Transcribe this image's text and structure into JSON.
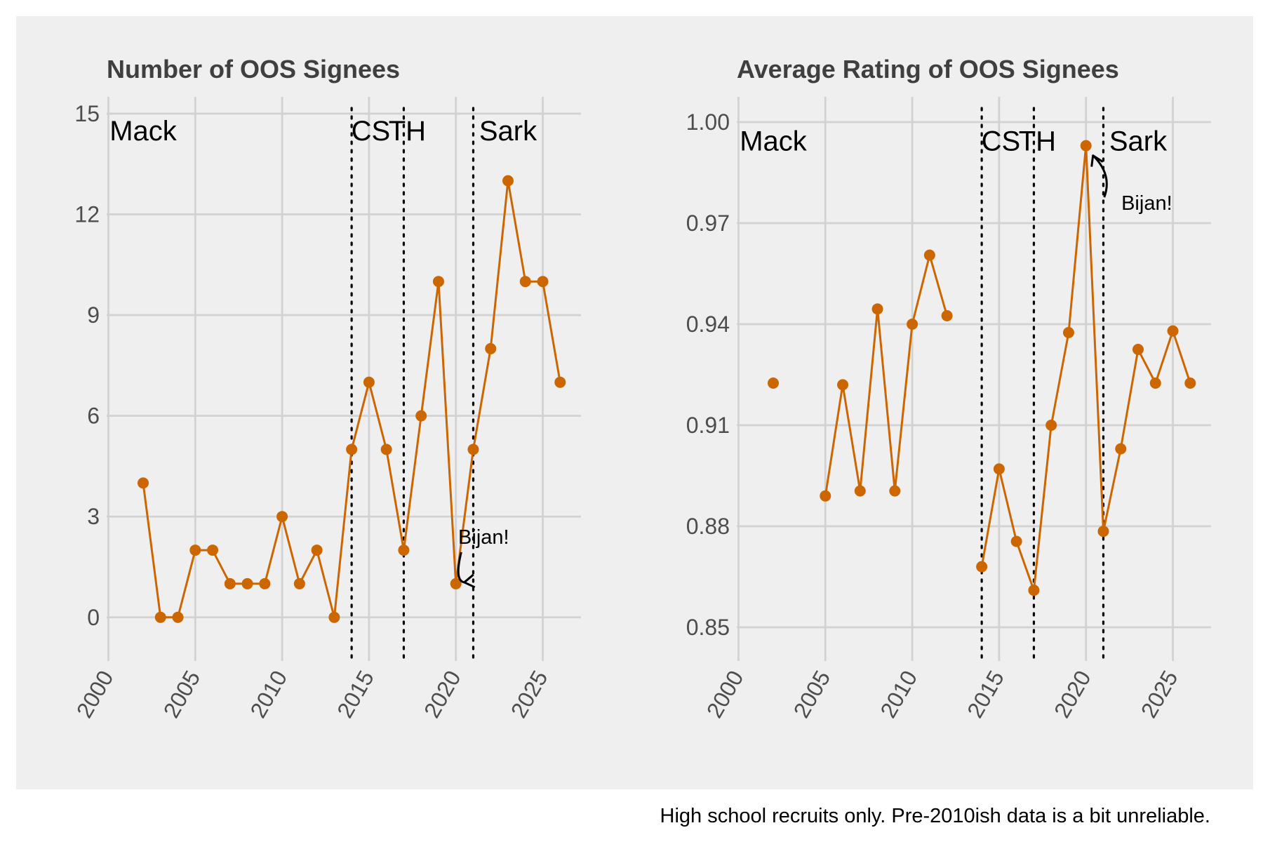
{
  "caption": "High school recruits only. Pre-2010ish data is a bit unreliable.",
  "colors": {
    "series": "#cc6600",
    "panel_background": "#efefef",
    "grid": "#d2d2d2",
    "vline": "#000000"
  },
  "chart_data": [
    {
      "type": "line",
      "title": "Number of OOS Signees",
      "xlabel": "",
      "ylabel": "",
      "xlim": [
        1999.9,
        2027.2
      ],
      "ylim": [
        -1.3,
        15.5
      ],
      "x_ticks": [
        2000,
        2005,
        2010,
        2015,
        2020,
        2025
      ],
      "y_ticks": [
        0,
        3,
        6,
        9,
        12,
        15
      ],
      "y_tick_labels": [
        "0",
        "3",
        "6",
        "9",
        "12",
        "15"
      ],
      "grid": true,
      "series": [
        {
          "x": [
            2002,
            2003,
            2004,
            2005,
            2006,
            2007,
            2008,
            2009,
            2010,
            2011,
            2012,
            2013,
            2014,
            2015,
            2016,
            2017,
            2018,
            2019,
            2020,
            2021,
            2022,
            2023,
            2024,
            2025,
            2026
          ],
          "values": [
            4,
            0,
            0,
            2,
            2,
            1,
            1,
            1,
            3,
            1,
            2,
            0,
            5,
            7,
            5,
            2,
            6,
            10,
            1,
            5,
            8,
            13,
            10,
            10,
            7
          ]
        }
      ],
      "vlines": [
        2014,
        2017,
        2021
      ],
      "eras": [
        {
          "label": "Mack",
          "x": 2002,
          "y": 14.5
        },
        {
          "label": "CS",
          "x": 2015.1,
          "y": 14.5
        },
        {
          "label": "TH",
          "x": 2017.2,
          "y": 14.5
        },
        {
          "label": "Sark",
          "x": 2023,
          "y": 14.5
        }
      ],
      "annotation": {
        "label": "Bijan!",
        "x": 2020,
        "y": 1,
        "text_x": 2021.6,
        "text_y": 2.4
      }
    },
    {
      "type": "line",
      "title": "Average Rating of OOS Signees",
      "xlabel": "",
      "ylabel": "",
      "xlim": [
        1999.9,
        2027.2
      ],
      "ylim": [
        0.84,
        1.0075
      ],
      "x_ticks": [
        2000,
        2005,
        2010,
        2015,
        2020,
        2025
      ],
      "y_ticks": [
        0.85,
        0.88,
        0.91,
        0.94,
        0.97,
        1.0
      ],
      "y_tick_labels": [
        "0.85",
        "0.88",
        "0.91",
        "0.94",
        "0.97",
        "1.00"
      ],
      "grid": true,
      "series": [
        {
          "segments": [
            {
              "x": [
                2002
              ],
              "values": [
                0.9225
              ]
            },
            {
              "x": [
                2005,
                2006,
                2007,
                2008,
                2009,
                2010,
                2011,
                2012
              ],
              "values": [
                0.889,
                0.922,
                0.8905,
                0.9445,
                0.8905,
                0.94,
                0.9605,
                0.9425
              ]
            },
            {
              "x": [
                2014,
                2015,
                2016,
                2017,
                2018,
                2019,
                2020,
                2021,
                2022,
                2023,
                2024,
                2025,
                2026
              ],
              "values": [
                0.868,
                0.897,
                0.8755,
                0.861,
                0.91,
                0.9375,
                0.993,
                0.8785,
                0.903,
                0.9325,
                0.9225,
                0.938,
                0.9225
              ]
            }
          ]
        }
      ],
      "vlines": [
        2014,
        2017,
        2021
      ],
      "eras": [
        {
          "label": "Mack",
          "x": 2002,
          "y": 0.9945
        },
        {
          "label": "CS",
          "x": 2015.1,
          "y": 0.9945
        },
        {
          "label": "TH",
          "x": 2017.2,
          "y": 0.9945
        },
        {
          "label": "Sark",
          "x": 2023,
          "y": 0.9945
        }
      ],
      "annotation": {
        "label": "Bijan!",
        "x": 2020,
        "y": 0.993,
        "text_x": 2023.5,
        "text_y": 0.976
      }
    }
  ]
}
